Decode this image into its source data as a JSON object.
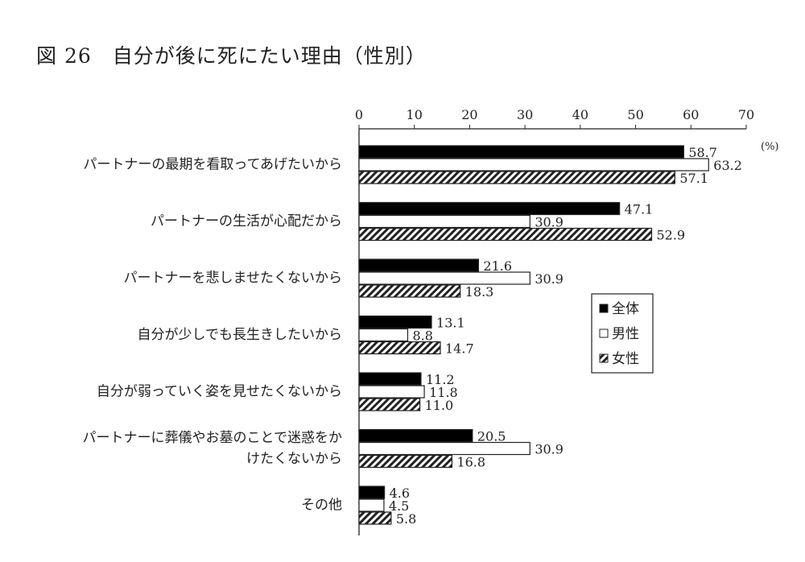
{
  "chart_data": {
    "type": "bar",
    "orientation": "horizontal",
    "title": "図 26　自分が後に死にたい理由（性別）",
    "unit_label": "(%)",
    "xlim": [
      0,
      70
    ],
    "xticks": [
      0,
      10,
      20,
      30,
      40,
      50,
      60,
      70
    ],
    "grid": false,
    "legend_placement": "right",
    "categories": [
      [
        "パートナーの最期を看取ってあげたいから"
      ],
      [
        "パートナーの生活が心配だから"
      ],
      [
        "パートナーを悲しませたくないから"
      ],
      [
        "自分が少しでも長生きしたいから"
      ],
      [
        "自分が弱っていく姿を見せたくないから"
      ],
      [
        "パートナーに葬儀やお墓のことで迷惑をか",
        "けたくないから"
      ],
      [
        "その他"
      ]
    ],
    "series": [
      {
        "name": "全体",
        "fill": "solid",
        "color": "#000000",
        "values": [
          58.7,
          47.1,
          21.6,
          13.1,
          11.2,
          20.5,
          4.6
        ]
      },
      {
        "name": "男性",
        "fill": "white",
        "color": "#ffffff",
        "values": [
          63.2,
          30.9,
          30.9,
          8.8,
          11.8,
          30.9,
          4.5
        ]
      },
      {
        "name": "女性",
        "fill": "hatch",
        "color": "#333333",
        "values": [
          57.1,
          52.9,
          18.3,
          14.7,
          11.0,
          16.8,
          5.8
        ]
      }
    ]
  }
}
